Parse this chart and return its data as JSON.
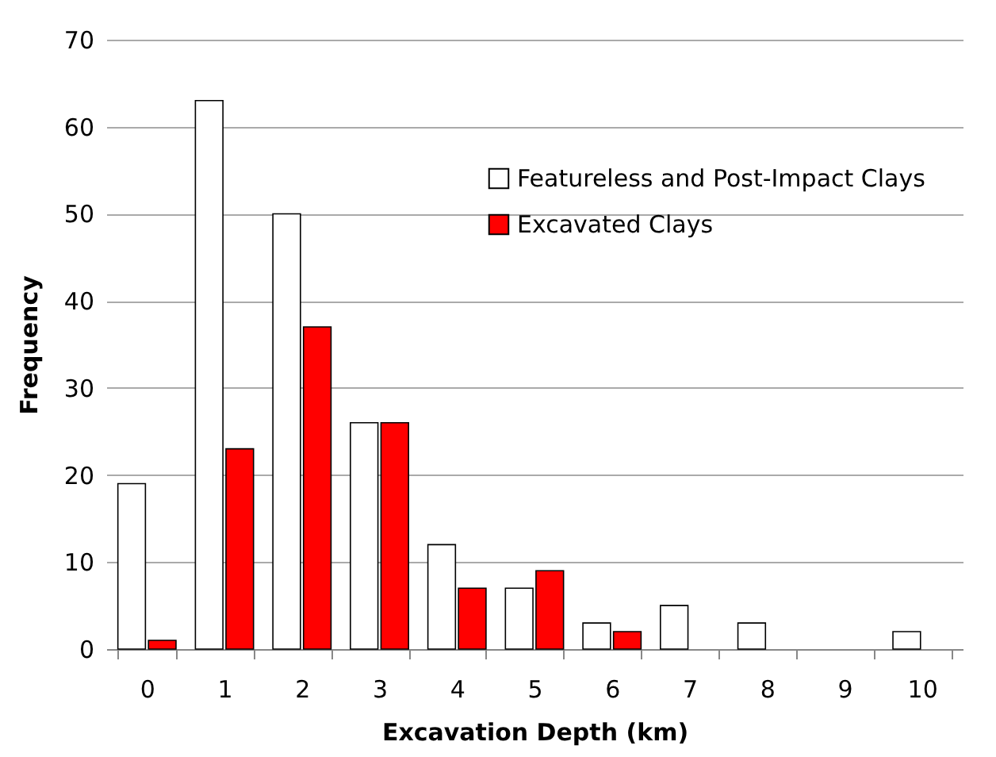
{
  "chart_data": {
    "type": "bar",
    "xlabel": "Excavation Depth (km)",
    "ylabel": "Frequency",
    "categories": [
      "0",
      "1",
      "2",
      "3",
      "4",
      "5",
      "6",
      "7",
      "8",
      "9",
      "10"
    ],
    "series": [
      {
        "name": "Featureless and Post-Impact Clays",
        "color": "#ffffff",
        "values": [
          19,
          63,
          50,
          26,
          12,
          7,
          3,
          5,
          3,
          0,
          2
        ]
      },
      {
        "name": "Excavated Clays",
        "color": "#ff0000",
        "values": [
          1,
          23,
          37,
          26,
          7,
          9,
          2,
          0,
          0,
          0,
          0
        ]
      }
    ],
    "ylim": [
      0,
      70
    ],
    "yticks": [
      0,
      10,
      20,
      30,
      40,
      50,
      60,
      70
    ],
    "grid": "y",
    "legend": "top right"
  }
}
